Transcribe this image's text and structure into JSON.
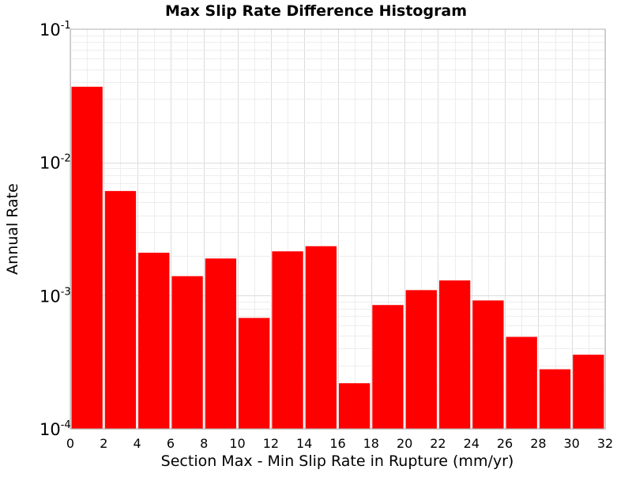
{
  "chart_data": {
    "type": "bar",
    "title": "Max Slip Rate Difference Histogram",
    "xlabel": "Section Max - Min Slip Rate in Rupture (mm/yr)",
    "ylabel": "Annual Rate",
    "yscale": "log",
    "xlim": [
      0,
      32
    ],
    "ylim": [
      0.0001,
      0.1
    ],
    "bar_width": 2,
    "grid": true,
    "bar_color": "#ff0000",
    "x_ticks": [
      "0",
      "2",
      "4",
      "6",
      "8",
      "10",
      "12",
      "14",
      "16",
      "18",
      "20",
      "22",
      "24",
      "26",
      "28",
      "30",
      "32"
    ],
    "y_ticks": [
      {
        "base": "10",
        "exp": "-4",
        "value": 0.0001
      },
      {
        "base": "10",
        "exp": "-3",
        "value": 0.001
      },
      {
        "base": "10",
        "exp": "-2",
        "value": 0.01
      },
      {
        "base": "10",
        "exp": "-1",
        "value": 0.1
      }
    ],
    "bins": [
      {
        "x": 1,
        "y": 0.037
      },
      {
        "x": 3,
        "y": 0.0061
      },
      {
        "x": 5,
        "y": 0.0021
      },
      {
        "x": 7,
        "y": 0.0014
      },
      {
        "x": 9,
        "y": 0.0019
      },
      {
        "x": 11,
        "y": 0.00068
      },
      {
        "x": 13,
        "y": 0.00215
      },
      {
        "x": 15,
        "y": 0.00235
      },
      {
        "x": 17,
        "y": 0.00022
      },
      {
        "x": 19,
        "y": 0.00085
      },
      {
        "x": 21,
        "y": 0.0011
      },
      {
        "x": 23,
        "y": 0.0013
      },
      {
        "x": 25,
        "y": 0.00092
      },
      {
        "x": 27,
        "y": 0.00049
      },
      {
        "x": 29,
        "y": 0.00028
      },
      {
        "x": 31,
        "y": 0.00036
      }
    ]
  }
}
